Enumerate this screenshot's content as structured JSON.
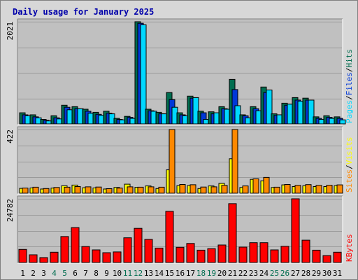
{
  "chart_data": {
    "type": "bar",
    "title": "Daily usage for January 2025",
    "colors": {
      "title": "#0000aa",
      "hits": "#006d4f",
      "files": "#0038d8",
      "pages": "#00d8ff",
      "visits": "#ffff00",
      "sites": "#ff8800",
      "kbytes": "#ff0000",
      "weekend_label": "#006d4f",
      "panel_bg": "#c0c0c0",
      "frame_bg": "#d7d7d7"
    },
    "categories": [
      "1",
      "2",
      "3",
      "4",
      "5",
      "6",
      "7",
      "8",
      "9",
      "10",
      "11",
      "12",
      "13",
      "14",
      "15",
      "16",
      "17",
      "18",
      "19",
      "20",
      "21",
      "22",
      "23",
      "24",
      "25",
      "26",
      "27",
      "28",
      "29",
      "30",
      "31"
    ],
    "weekend_days": [
      "4",
      "5",
      "11",
      "12",
      "18",
      "19",
      "25",
      "26"
    ],
    "panels": [
      {
        "ymax": 2021,
        "max_label": "2021",
        "legend": [
          "Pages",
          "/",
          "Files",
          "/",
          "Hits"
        ],
        "series": [
          {
            "name": "Hits",
            "values": [
              220,
              180,
              90,
              160,
              370,
              340,
              290,
              230,
              250,
              110,
              150,
              2021,
              290,
              230,
              620,
              220,
              550,
              250,
              240,
              340,
              880,
              180,
              340,
              730,
              200,
              410,
              520,
              510,
              140,
              160,
              140
            ]
          },
          {
            "name": "Files",
            "values": [
              180,
              140,
              70,
              120,
              330,
              300,
              250,
              190,
              210,
              90,
              130,
              1990,
              260,
              200,
              480,
              180,
              510,
              220,
              200,
              300,
              680,
              160,
              300,
              620,
              170,
              370,
              470,
              470,
              110,
              130,
              110
            ]
          },
          {
            "name": "Pages",
            "values": [
              160,
              120,
              60,
              100,
              280,
              300,
              210,
              170,
              200,
              80,
              110,
              1960,
              250,
              200,
              330,
              160,
              520,
              90,
              220,
              290,
              360,
              120,
              260,
              670,
              180,
              390,
              450,
              470,
              90,
              110,
              80
            ]
          }
        ]
      },
      {
        "ymax": 422,
        "max_label": "422",
        "legend": [
          "Sites",
          "/",
          "Visits"
        ],
        "series": [
          {
            "name": "Visits",
            "values": [
              32,
              35,
              28,
              34,
              49,
              54,
              36,
              35,
              28,
              38,
              60,
              39,
              48,
              31,
              155,
              50,
              51,
              31,
              48,
              65,
              228,
              38,
              92,
              82,
              38,
              55,
              44,
              49,
              44,
              44,
              50
            ]
          },
          {
            "name": "Sites",
            "values": [
              34,
              40,
              31,
              38,
              40,
              44,
              42,
              41,
              30,
              34,
              42,
              40,
              42,
              40,
              422,
              58,
              56,
              41,
              42,
              52,
              422,
              48,
              95,
              105,
              40,
              58,
              52,
              57,
              52,
              53,
              55
            ]
          }
        ]
      },
      {
        "ymax": 24782,
        "max_label": "24782",
        "legend": [
          "KBytes"
        ],
        "series": [
          {
            "name": "KBytes",
            "values": [
              5100,
              3000,
              1900,
              4000,
              10100,
              13600,
              6200,
              4900,
              3800,
              4100,
              9600,
              13300,
              9000,
              5600,
              19900,
              5900,
              7400,
              4800,
              5400,
              6800,
              22900,
              6000,
              7700,
              7700,
              4900,
              6300,
              24782,
              8700,
              4800,
              2700,
              4000
            ]
          }
        ]
      }
    ]
  }
}
